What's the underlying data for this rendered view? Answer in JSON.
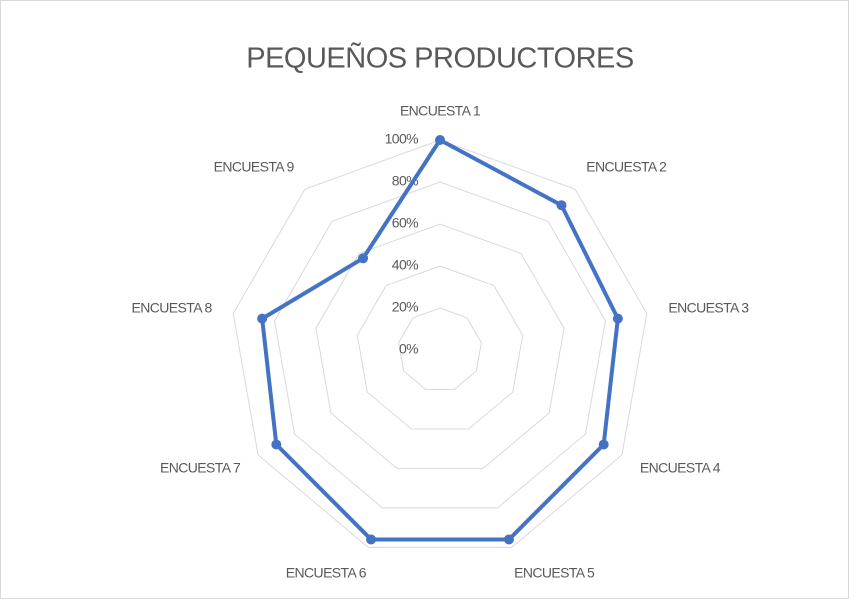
{
  "chart_data": {
    "type": "radar",
    "title": "PEQUEÑOS PRODUCTORES",
    "categories": [
      "ENCUESTA 1",
      "ENCUESTA 2",
      "ENCUESTA 3",
      "ENCUESTA 4",
      "ENCUESTA 5",
      "ENCUESTA 6",
      "ENCUESTA 7",
      "ENCUESTA 8",
      "ENCUESTA 9"
    ],
    "series": [
      {
        "name": "PEQUEÑOS PRODUCTORES",
        "color": "#4472c4",
        "values": [
          100,
          90,
          86,
          90,
          96,
          96,
          90,
          86,
          57
        ]
      }
    ],
    "ylim": [
      0,
      100
    ],
    "yticks": [
      {
        "value": 0,
        "label": "0%"
      },
      {
        "value": 20,
        "label": "20%"
      },
      {
        "value": 40,
        "label": "40%"
      },
      {
        "value": 60,
        "label": "60%"
      },
      {
        "value": 80,
        "label": "80%"
      },
      {
        "value": 100,
        "label": "100%"
      }
    ],
    "grid": true
  }
}
